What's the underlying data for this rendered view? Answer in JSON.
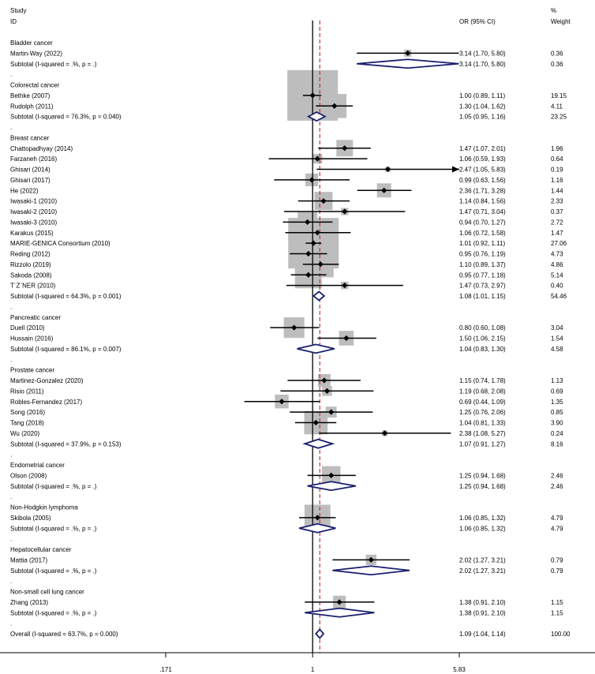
{
  "chart_data": {
    "type": "forest",
    "headers": {
      "study_top": "Study",
      "study_bottom": "ID",
      "or": "OR (95% CI)",
      "weight_top": "%",
      "weight_bottom": "Weight"
    },
    "x_scale": "log",
    "xlim": [
      0.171,
      5.83
    ],
    "x_ticks": [
      {
        "value": 0.171,
        "label": ".171"
      },
      {
        "value": 1,
        "label": "1"
      },
      {
        "value": 5.83,
        "label": "5.83"
      }
    ],
    "null_line": 1,
    "overall_line": 1.09,
    "rows": [
      {
        "kind": "group",
        "label": "Bladder cancer"
      },
      {
        "kind": "study",
        "label": "Martin-Way (2022)",
        "or": 3.14,
        "lo": 1.7,
        "hi": 5.8,
        "ci_text": "3.14 (1.70, 5.80)",
        "weight": 0.36,
        "weight_text": "0.36"
      },
      {
        "kind": "subtotal",
        "label": "Subtotal  (I-squared = .%, p = .)",
        "or": 3.14,
        "lo": 1.7,
        "hi": 5.8,
        "ci_text": "3.14 (1.70, 5.80)",
        "weight_text": "0.36"
      },
      {
        "kind": "dot",
        "label": "."
      },
      {
        "kind": "group",
        "label": "Colorectal cancer"
      },
      {
        "kind": "study",
        "label": "Bethke (2007)",
        "or": 1.0,
        "lo": 0.89,
        "hi": 1.11,
        "ci_text": "1.00 (0.89, 1.11)",
        "weight": 19.15,
        "weight_text": "19.15"
      },
      {
        "kind": "study",
        "label": "Rudolph (2011)",
        "or": 1.3,
        "lo": 1.04,
        "hi": 1.62,
        "ci_text": "1.30 (1.04, 1.62)",
        "weight": 4.11,
        "weight_text": "4.11"
      },
      {
        "kind": "subtotal",
        "label": "Subtotal  (I-squared = 76.3%, p = 0.040)",
        "or": 1.05,
        "lo": 0.95,
        "hi": 1.16,
        "ci_text": "1.05 (0.95, 1.16)",
        "weight_text": "23.25"
      },
      {
        "kind": "dot",
        "label": "."
      },
      {
        "kind": "group",
        "label": "Breast cancer"
      },
      {
        "kind": "study",
        "label": "Chattopadhyay (2014)",
        "or": 1.47,
        "lo": 1.07,
        "hi": 2.01,
        "ci_text": "1.47 (1.07, 2.01)",
        "weight": 1.96,
        "weight_text": "1.96"
      },
      {
        "kind": "study",
        "label": "Farzaneh (2016)",
        "or": 1.06,
        "lo": 0.59,
        "hi": 1.93,
        "ci_text": "1.06 (0.59, 1.93)",
        "weight": 0.64,
        "weight_text": "0.64"
      },
      {
        "kind": "study",
        "label": "Ghisari (2014)",
        "or": 2.47,
        "lo": 1.05,
        "hi": 5.83,
        "ci_text": "2.47 (1.05, 5.83)",
        "weight": 0.19,
        "weight_text": "0.19",
        "arrow": true
      },
      {
        "kind": "study",
        "label": "Ghisari (2017)",
        "or": 0.99,
        "lo": 0.63,
        "hi": 1.56,
        "ci_text": "0.99 (0.63, 1.56)",
        "weight": 1.16,
        "weight_text": "1.16"
      },
      {
        "kind": "study",
        "label": "He (2022)",
        "or": 2.36,
        "lo": 1.71,
        "hi": 3.28,
        "ci_text": "2.36 (1.71, 3.28)",
        "weight": 1.44,
        "weight_text": "1.44"
      },
      {
        "kind": "study",
        "label": "Iwasaki-1 (2010)",
        "or": 1.14,
        "lo": 0.84,
        "hi": 1.56,
        "ci_text": "1.14 (0.84, 1.56)",
        "weight": 2.33,
        "weight_text": "2.33"
      },
      {
        "kind": "study",
        "label": "Iwasaki-2 (2010)",
        "or": 1.47,
        "lo": 0.71,
        "hi": 3.04,
        "ci_text": "1.47 (0.71, 3.04)",
        "weight": 0.37,
        "weight_text": "0.37"
      },
      {
        "kind": "study",
        "label": "Iwasaki-3 (2010)",
        "or": 0.94,
        "lo": 0.7,
        "hi": 1.27,
        "ci_text": "0.94 (0.70, 1.27)",
        "weight": 2.72,
        "weight_text": "2.72"
      },
      {
        "kind": "study",
        "label": "Karakus (2015)",
        "or": 1.06,
        "lo": 0.72,
        "hi": 1.58,
        "ci_text": "1.06 (0.72, 1.58)",
        "weight": 1.47,
        "weight_text": "1.47"
      },
      {
        "kind": "study",
        "label": "MARIE-GENICA Consortium (2010)",
        "or": 1.01,
        "lo": 0.92,
        "hi": 1.11,
        "ci_text": "1.01 (0.92, 1.11)",
        "weight": 27.06,
        "weight_text": "27.06"
      },
      {
        "kind": "study",
        "label": "Reding (2012)",
        "or": 0.95,
        "lo": 0.76,
        "hi": 1.19,
        "ci_text": "0.95 (0.76, 1.19)",
        "weight": 4.73,
        "weight_text": "4.73"
      },
      {
        "kind": "study",
        "label": "Rizzolo (2019)",
        "or": 1.1,
        "lo": 0.89,
        "hi": 1.37,
        "ci_text": "1.10 (0.89, 1.37)",
        "weight": 4.86,
        "weight_text": "4.86"
      },
      {
        "kind": "study",
        "label": "Sakoda (2008)",
        "or": 0.95,
        "lo": 0.77,
        "hi": 1.18,
        "ci_text": "0.95 (0.77, 1.18)",
        "weight": 5.14,
        "weight_text": "5.14"
      },
      {
        "kind": "study",
        "label": "T¨Z¨NER (2010)",
        "or": 1.47,
        "lo": 0.73,
        "hi": 2.97,
        "ci_text": "1.47 (0.73, 2.97)",
        "weight": 0.4,
        "weight_text": "0.40"
      },
      {
        "kind": "subtotal",
        "label": "Subtotal  (I-squared = 64.3%, p = 0.001)",
        "or": 1.08,
        "lo": 1.01,
        "hi": 1.15,
        "ci_text": "1.08 (1.01, 1.15)",
        "weight_text": "54.46"
      },
      {
        "kind": "dot",
        "label": "."
      },
      {
        "kind": "group",
        "label": "Pancreatic cancer"
      },
      {
        "kind": "study",
        "label": "Duell (2010)",
        "or": 0.8,
        "lo": 0.6,
        "hi": 1.08,
        "ci_text": "0.80 (0.60, 1.08)",
        "weight": 3.04,
        "weight_text": "3.04"
      },
      {
        "kind": "study",
        "label": "Hussain (2016)",
        "or": 1.5,
        "lo": 1.06,
        "hi": 2.15,
        "ci_text": "1.50 (1.06, 2.15)",
        "weight": 1.54,
        "weight_text": "1.54"
      },
      {
        "kind": "subtotal",
        "label": "Subtotal  (I-squared = 86.1%, p = 0.007)",
        "or": 1.04,
        "lo": 0.83,
        "hi": 1.3,
        "ci_text": "1.04 (0.83, 1.30)",
        "weight_text": "4.58"
      },
      {
        "kind": "dot",
        "label": "."
      },
      {
        "kind": "group",
        "label": "Prostate cancer"
      },
      {
        "kind": "study",
        "label": "Martinez-Gonzalez (2020)",
        "or": 1.15,
        "lo": 0.74,
        "hi": 1.78,
        "ci_text": "1.15 (0.74, 1.78)",
        "weight": 1.13,
        "weight_text": "1.13"
      },
      {
        "kind": "study",
        "label": "Risio (2011)",
        "or": 1.19,
        "lo": 0.68,
        "hi": 2.08,
        "ci_text": "1.19 (0.68, 2.08)",
        "weight": 0.69,
        "weight_text": "0.69"
      },
      {
        "kind": "study",
        "label": "Robles-Fernandez (2017)",
        "or": 0.69,
        "lo": 0.44,
        "hi": 1.09,
        "ci_text": "0.69 (0.44, 1.09)",
        "weight": 1.35,
        "weight_text": "1.35"
      },
      {
        "kind": "study",
        "label": "Song (2016)",
        "or": 1.25,
        "lo": 0.76,
        "hi": 2.06,
        "ci_text": "1.25 (0.76, 2.06)",
        "weight": 0.85,
        "weight_text": "0.85"
      },
      {
        "kind": "study",
        "label": "Tang (2018)",
        "or": 1.04,
        "lo": 0.81,
        "hi": 1.33,
        "ci_text": "1.04 (0.81, 1.33)",
        "weight": 3.9,
        "weight_text": "3.90"
      },
      {
        "kind": "study",
        "label": "Wu (2020)",
        "or": 2.38,
        "lo": 1.08,
        "hi": 5.27,
        "ci_text": "2.38 (1.08, 5.27)",
        "weight": 0.24,
        "weight_text": "0.24"
      },
      {
        "kind": "subtotal",
        "label": "Subtotal  (I-squared = 37.9%, p = 0.153)",
        "or": 1.07,
        "lo": 0.91,
        "hi": 1.27,
        "ci_text": "1.07 (0.91, 1.27)",
        "weight_text": "8.16"
      },
      {
        "kind": "dot",
        "label": "."
      },
      {
        "kind": "group",
        "label": "Endometrial cancer"
      },
      {
        "kind": "study",
        "label": "Olson (2008)",
        "or": 1.25,
        "lo": 0.94,
        "hi": 1.68,
        "ci_text": "1.25 (0.94, 1.68)",
        "weight": 2.46,
        "weight_text": "2.46"
      },
      {
        "kind": "subtotal",
        "label": "Subtotal  (I-squared = .%, p = .)",
        "or": 1.25,
        "lo": 0.94,
        "hi": 1.68,
        "ci_text": "1.25 (0.94, 1.68)",
        "weight_text": "2.46"
      },
      {
        "kind": "dot",
        "label": "."
      },
      {
        "kind": "group",
        "label": "Non-Hodgkin lymphoma"
      },
      {
        "kind": "study",
        "label": "Skibola (2005)",
        "or": 1.06,
        "lo": 0.85,
        "hi": 1.32,
        "ci_text": "1.06 (0.85, 1.32)",
        "weight": 4.79,
        "weight_text": "4.79"
      },
      {
        "kind": "subtotal",
        "label": "Subtotal  (I-squared = .%, p = .)",
        "or": 1.06,
        "lo": 0.85,
        "hi": 1.32,
        "ci_text": "1.06 (0.85, 1.32)",
        "weight_text": "4.79"
      },
      {
        "kind": "dot",
        "label": "."
      },
      {
        "kind": "group",
        "label": "Hepatocellular cancer"
      },
      {
        "kind": "study",
        "label": "Mattia (2017)",
        "or": 2.02,
        "lo": 1.27,
        "hi": 3.21,
        "ci_text": "2.02 (1.27, 3.21)",
        "weight": 0.79,
        "weight_text": "0.79"
      },
      {
        "kind": "subtotal",
        "label": "Subtotal  (I-squared = .%, p = .)",
        "or": 2.02,
        "lo": 1.27,
        "hi": 3.21,
        "ci_text": "2.02 (1.27, 3.21)",
        "weight_text": "0.79"
      },
      {
        "kind": "dot",
        "label": "."
      },
      {
        "kind": "group",
        "label": "Non-small cell lung cancer"
      },
      {
        "kind": "study",
        "label": "Zhang (2013)",
        "or": 1.38,
        "lo": 0.91,
        "hi": 2.1,
        "ci_text": "1.38 (0.91, 2.10)",
        "weight": 1.15,
        "weight_text": "1.15"
      },
      {
        "kind": "subtotal",
        "label": "Subtotal  (I-squared = .%, p = .)",
        "or": 1.38,
        "lo": 0.91,
        "hi": 2.1,
        "ci_text": "1.38 (0.91, 2.10)",
        "weight_text": "1.15"
      },
      {
        "kind": "dot",
        "label": "."
      },
      {
        "kind": "overall",
        "label": "Overall  (I-squared = 63.7%, p = 0.000)",
        "or": 1.09,
        "lo": 1.04,
        "hi": 1.14,
        "ci_text": "1.09 (1.04, 1.14)",
        "weight_text": "100.00"
      }
    ],
    "colors": {
      "diamond": "#1a1f6e",
      "overall_line": "#c0252a",
      "weight_box": "#bdbdbd",
      "axis_text": "#000000"
    }
  }
}
